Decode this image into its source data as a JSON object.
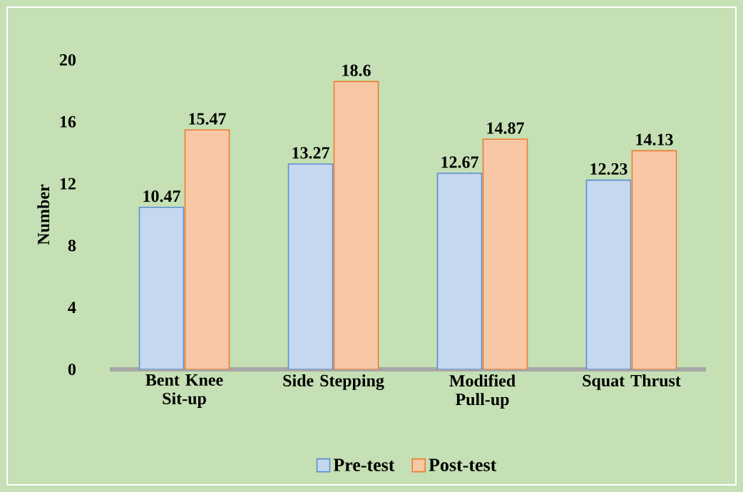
{
  "chart_data": {
    "type": "bar",
    "ylabel": "Number",
    "categories": [
      "Bent Knee Sit-up",
      "Side Stepping",
      "Modified Pull-up",
      "Squat Thrust"
    ],
    "series": [
      {
        "name": "Pre-test",
        "color": "#c5d8f0",
        "values": [
          10.47,
          13.27,
          12.67,
          12.23
        ]
      },
      {
        "name": "Post-test",
        "color": "#f8c8a6",
        "values": [
          15.47,
          18.6,
          14.87,
          14.13
        ]
      }
    ],
    "ylim": [
      0,
      20
    ],
    "yticks": [
      0,
      4,
      8,
      12,
      16,
      20
    ],
    "data_labels": true,
    "grid": false,
    "legend": "bottom"
  }
}
